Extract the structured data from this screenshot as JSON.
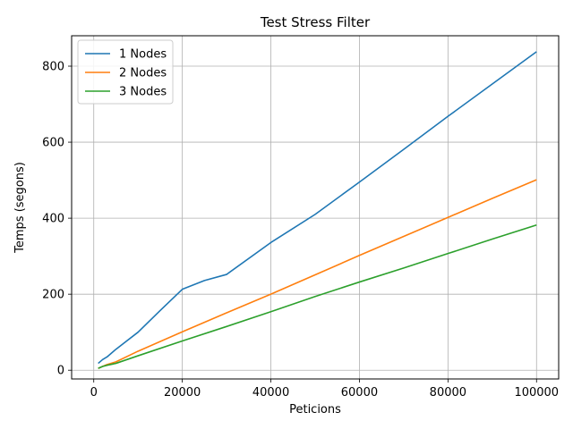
{
  "chart_data": {
    "type": "line",
    "title": "Test Stress Filter",
    "xlabel": "Peticions",
    "ylabel": "Temps (segons)",
    "xlim": [
      -5000,
      105000
    ],
    "ylim": [
      -23,
      880
    ],
    "xticks": [
      0,
      20000,
      40000,
      60000,
      80000,
      100000
    ],
    "xtick_labels": [
      "0",
      "20000",
      "40000",
      "60000",
      "80000",
      "100000"
    ],
    "yticks": [
      0,
      200,
      400,
      600,
      800
    ],
    "ytick_labels": [
      "0",
      "200",
      "400",
      "600",
      "800"
    ],
    "grid": true,
    "legend_position": "top-left",
    "series": [
      {
        "name": "1 Nodes",
        "color": "#1f77b4",
        "x": [
          1000,
          2000,
          3000,
          5000,
          10000,
          15000,
          20000,
          25000,
          30000,
          40000,
          50000,
          60000,
          70000,
          80000,
          90000,
          100000
        ],
        "y": [
          18,
          28,
          35,
          55,
          100,
          157,
          213,
          236,
          252,
          336,
          410,
          495,
          581,
          668,
          753,
          838
        ]
      },
      {
        "name": "2 Nodes",
        "color": "#ff7f0e",
        "x": [
          1000,
          2000,
          3000,
          5000,
          10000,
          20000,
          30000,
          40000,
          50000,
          60000,
          70000,
          80000,
          90000,
          100000
        ],
        "y": [
          5,
          10,
          15,
          22,
          50,
          101,
          151,
          200,
          251,
          302,
          352,
          402,
          452,
          501
        ]
      },
      {
        "name": "3 Nodes",
        "color": "#2ca02c",
        "x": [
          1000,
          2000,
          3000,
          5000,
          10000,
          20000,
          30000,
          40000,
          50000,
          60000,
          70000,
          80000,
          90000,
          100000
        ],
        "y": [
          5,
          10,
          13,
          18,
          38,
          77,
          115,
          154,
          194,
          232,
          269,
          307,
          345,
          382
        ]
      }
    ]
  }
}
